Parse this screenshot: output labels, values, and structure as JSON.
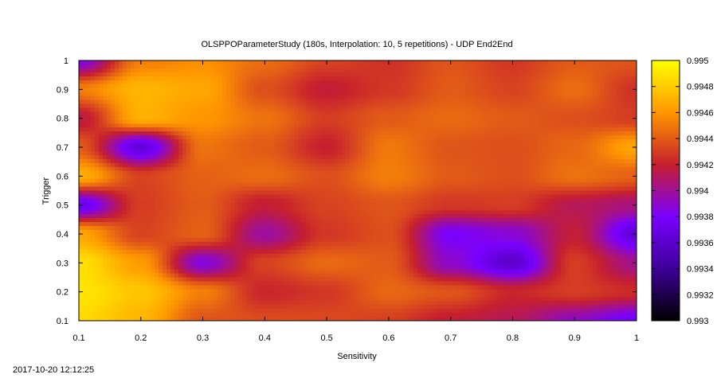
{
  "timestamp": "2017-10-20 12:12:25",
  "chart_data": {
    "type": "heatmap",
    "title": "OLSPPOParameterStudy (180s, Interpolation: 10, 5 repetitions) - UDP End2End",
    "xlabel": "Sensitivity",
    "ylabel": "Trigger",
    "xlim": [
      0.1,
      1.0
    ],
    "ylim": [
      0.1,
      1.0
    ],
    "x_ticks": [
      "0.1",
      "0.2",
      "0.3",
      "0.4",
      "0.5",
      "0.6",
      "0.7",
      "0.8",
      "0.9",
      "1"
    ],
    "y_ticks": [
      "0.1",
      "0.2",
      "0.3",
      "0.4",
      "0.5",
      "0.6",
      "0.7",
      "0.8",
      "0.9",
      "1"
    ],
    "colorbar": {
      "range": [
        0.993,
        0.995
      ],
      "ticks": [
        "0.993",
        "0.9932",
        "0.9934",
        "0.9936",
        "0.9938",
        "0.994",
        "0.9942",
        "0.9944",
        "0.9946",
        "0.9948",
        "0.995"
      ],
      "palette": [
        "#000000",
        "#3e0099",
        "#7a00ff",
        "#c61f2e",
        "#ff9600",
        "#ffff00"
      ]
    },
    "x": [
      0.1,
      0.2,
      0.3,
      0.4,
      0.5,
      0.6,
      0.7,
      0.8,
      0.9,
      1.0
    ],
    "y": [
      0.1,
      0.2,
      0.3,
      0.4,
      0.5,
      0.6,
      0.7,
      0.8,
      0.9,
      1.0
    ],
    "z": [
      [
        0.99486,
        0.99472,
        0.99438,
        0.99435,
        0.99434,
        0.99431,
        0.99418,
        0.99412,
        0.99392,
        0.99376
      ],
      [
        0.9949,
        0.99478,
        0.99452,
        0.99422,
        0.99428,
        0.99444,
        0.99438,
        0.99422,
        0.9943,
        0.99424
      ],
      [
        0.99488,
        0.99462,
        0.99386,
        0.99432,
        0.99445,
        0.9944,
        0.9939,
        0.9936,
        0.9943,
        0.99402
      ],
      [
        0.99466,
        0.99432,
        0.99442,
        0.99398,
        0.99428,
        0.99436,
        0.9938,
        0.99388,
        0.99418,
        0.99365
      ],
      [
        0.9937,
        0.9943,
        0.9944,
        0.99418,
        0.99432,
        0.99438,
        0.99428,
        0.9943,
        0.99412,
        0.99405
      ],
      [
        0.9947,
        0.99432,
        0.99442,
        0.99446,
        0.99436,
        0.99452,
        0.9944,
        0.99436,
        0.99448,
        0.99442
      ],
      [
        0.9944,
        0.99365,
        0.99448,
        0.9944,
        0.9942,
        0.9945,
        0.99438,
        0.99436,
        0.99444,
        0.99466
      ],
      [
        0.99415,
        0.9947,
        0.9946,
        0.99448,
        0.9943,
        0.9944,
        0.99445,
        0.9944,
        0.99436,
        0.9943
      ],
      [
        0.99452,
        0.99472,
        0.99466,
        0.99436,
        0.99418,
        0.99428,
        0.9944,
        0.99432,
        0.99446,
        0.99426
      ],
      [
        0.99385,
        0.99452,
        0.99458,
        0.99446,
        0.99432,
        0.99426,
        0.99438,
        0.99428,
        0.9944,
        0.99438
      ]
    ]
  }
}
